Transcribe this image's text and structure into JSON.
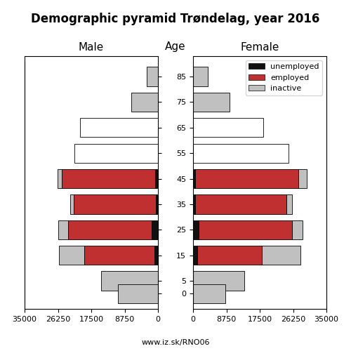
{
  "title": "Demographic pyramid Trøndelag, year 2016",
  "ylabel": "Age",
  "footer": "www.iz.sk/RNO06",
  "chart_data": [
    {
      "type": "bar",
      "orientation": "horizontal",
      "stacked": true,
      "title": "Male",
      "y": [
        85,
        75,
        65,
        55,
        45,
        35,
        25,
        15,
        5,
        0
      ],
      "ylim": [
        -6,
        93
      ],
      "yticks": [
        85,
        75,
        65,
        55,
        45,
        35,
        25,
        15,
        5,
        0
      ],
      "xlim": [
        35000,
        0
      ],
      "xticks": [
        35000,
        26250,
        17500,
        8750,
        0
      ],
      "tick_labels": "x",
      "series": [
        {
          "name": "unemployed",
          "color": "#111111",
          "values": [
            0,
            0,
            0,
            0,
            700,
            550,
            1600,
            900,
            0,
            0
          ]
        },
        {
          "name": "employed",
          "color": "#C03030",
          "values": [
            0,
            0,
            0,
            0,
            24500,
            21500,
            22000,
            18500,
            0,
            0
          ]
        },
        {
          "name": "inactive",
          "color": "#C0C0C0",
          "colors": [
            "#C0C0C0",
            "#C0C0C0",
            "#FFFFFF",
            "#FFFFFF",
            "#C0C0C0",
            "#C0C0C0",
            "#C0C0C0",
            "#C0C0C0",
            "#C0C0C0",
            "#C0C0C0"
          ],
          "values": [
            3000,
            7000,
            20500,
            22000,
            1200,
            1000,
            2500,
            6500,
            15000,
            10500
          ]
        }
      ]
    },
    {
      "type": "bar",
      "orientation": "horizontal",
      "stacked": true,
      "title": "Female",
      "y": [
        85,
        75,
        65,
        55,
        45,
        35,
        25,
        15,
        5,
        0
      ],
      "ylim": [
        -6,
        93
      ],
      "yticks": [
        85,
        75,
        65,
        55,
        45,
        35,
        25,
        15,
        5,
        0
      ],
      "xlim": [
        0,
        35000
      ],
      "xticks": [
        0,
        8750,
        17500,
        26250,
        35000
      ],
      "legend": "upper right",
      "series": [
        {
          "name": "unemployed",
          "color": "#111111",
          "values": [
            0,
            0,
            0,
            0,
            600,
            500,
            1400,
            1100,
            0,
            0
          ]
        },
        {
          "name": "employed",
          "color": "#C03030",
          "values": [
            0,
            0,
            0,
            0,
            27000,
            24000,
            24500,
            17000,
            0,
            0
          ]
        },
        {
          "name": "inactive",
          "color": "#C0C0C0",
          "colors": [
            "#C0C0C0",
            "#C0C0C0",
            "#FFFFFF",
            "#FFFFFF",
            "#C0C0C0",
            "#C0C0C0",
            "#C0C0C0",
            "#C0C0C0",
            "#C0C0C0",
            "#C0C0C0"
          ],
          "values": [
            3800,
            9500,
            18500,
            25000,
            2200,
            1400,
            2800,
            10000,
            13500,
            8500
          ]
        }
      ]
    }
  ]
}
